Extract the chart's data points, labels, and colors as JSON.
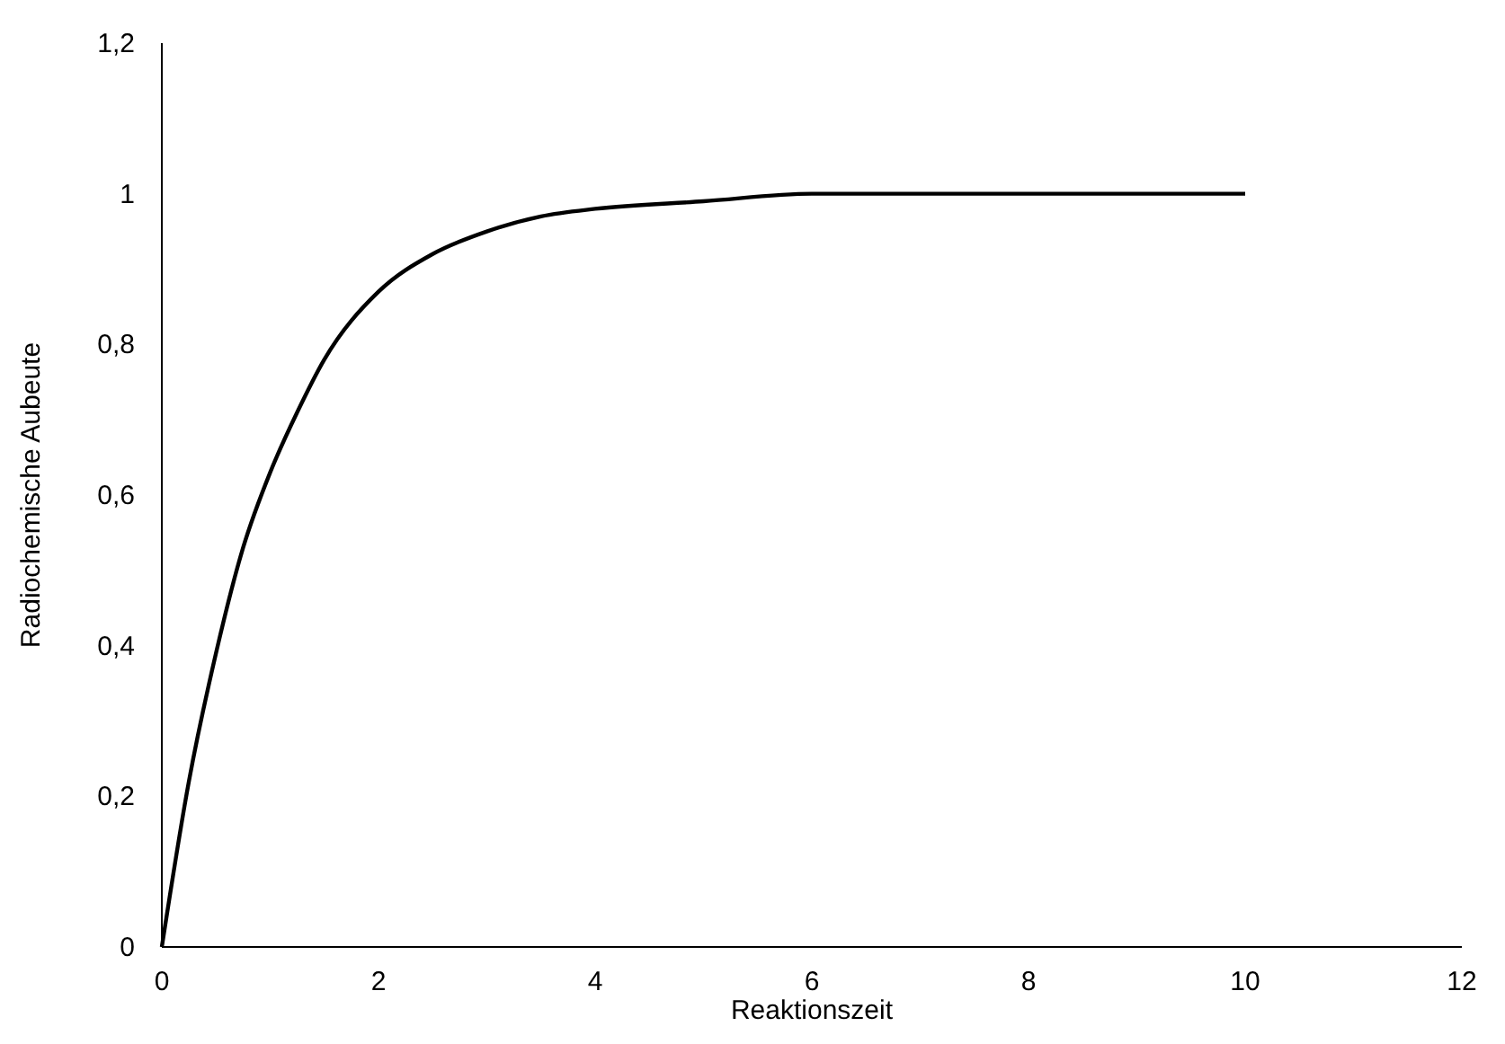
{
  "chart_data": {
    "type": "line",
    "xlabel": "Reaktionszeit",
    "ylabel": "Radiochemische Aubeute",
    "x": [
      0,
      0.25,
      0.5,
      0.75,
      1,
      1.25,
      1.5,
      2,
      2.5,
      3,
      3.5,
      4,
      5,
      6,
      7,
      8,
      10
    ],
    "series": [
      {
        "color": "#000000",
        "values": [
          0,
          0.22,
          0.39,
          0.53,
          0.63,
          0.71,
          0.78,
          0.87,
          0.92,
          0.95,
          0.97,
          0.98,
          0.99,
          1,
          1,
          1,
          1
        ]
      }
    ],
    "xlim": [
      0,
      12
    ],
    "xticks": [
      0,
      2,
      4,
      6,
      8,
      10,
      12
    ],
    "ylim": [
      0,
      1.2
    ],
    "yticks": [
      0,
      {
        "value": 0.2,
        "label": "0,2"
      },
      {
        "value": 0.4,
        "label": "0,4"
      },
      {
        "value": 0.6,
        "label": "0,6"
      },
      {
        "value": 0.8,
        "label": "0,8"
      },
      1,
      {
        "value": 1.2,
        "label": "1,2"
      }
    ],
    "grid": false,
    "marker": "none",
    "line_style": "solid"
  }
}
